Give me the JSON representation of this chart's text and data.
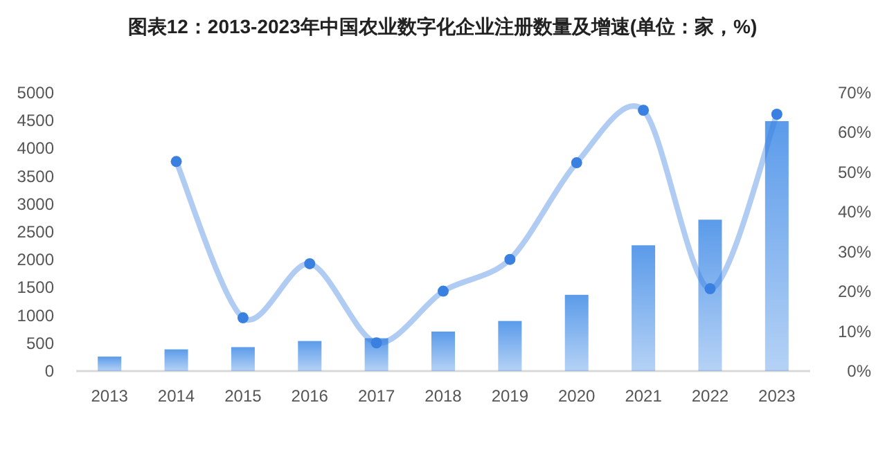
{
  "chart_data": {
    "type": "bar",
    "title": "图表12：2013-2023年中国农业数字化企业注册数量及增速(单位：家，%)",
    "categories": [
      "2013",
      "2014",
      "2015",
      "2016",
      "2017",
      "2018",
      "2019",
      "2020",
      "2021",
      "2022",
      "2023"
    ],
    "series": [
      {
        "color": "#5b9bea",
        "values": [
          260,
          390,
          430,
          540,
          590,
          710,
          900,
          1370,
          2260,
          2720,
          4490
        ]
      },
      {
        "type": "line",
        "axis": "y2",
        "color": "#3a80e0",
        "marker": "circle",
        "values": [
          null,
          52.7,
          13.4,
          27,
          7.1,
          20.1,
          28.1,
          52.4,
          65.6,
          20.7,
          64.6
        ]
      }
    ],
    "ylim": [
      0,
      5000
    ],
    "yticks": [
      0,
      500,
      1000,
      1500,
      2000,
      2500,
      3000,
      3500,
      4000,
      4500,
      5000
    ],
    "y2lim": [
      0,
      70
    ],
    "y2ticks": [
      {
        "value": 0,
        "label": "0%"
      },
      {
        "value": 10,
        "label": "10%"
      },
      {
        "value": 20,
        "label": "20%"
      },
      {
        "value": 30,
        "label": "30%"
      },
      {
        "value": 40,
        "label": "40%"
      },
      {
        "value": 50,
        "label": "50%"
      },
      {
        "value": 60,
        "label": "60%"
      },
      {
        "value": 70,
        "label": "70%"
      }
    ],
    "grid": false
  }
}
